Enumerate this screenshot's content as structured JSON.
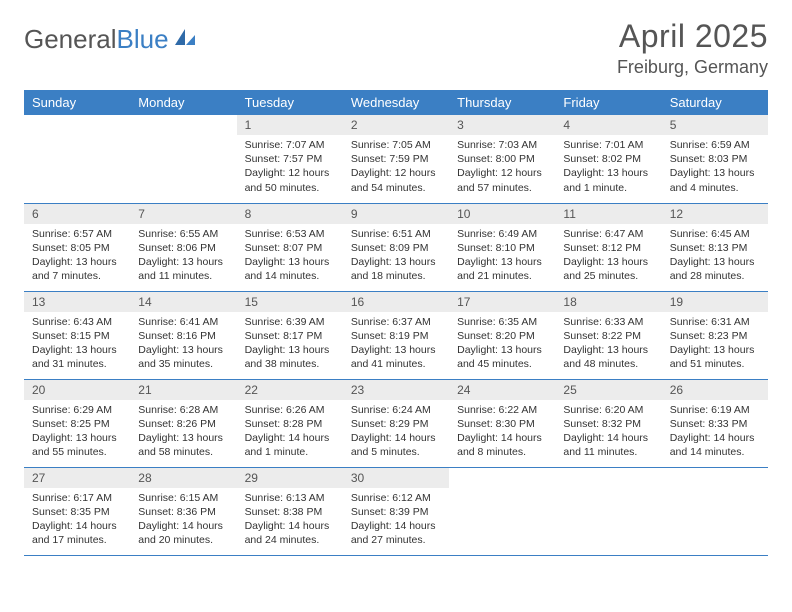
{
  "brand": {
    "part1": "General",
    "part2": "Blue"
  },
  "title": "April 2025",
  "location": "Freiburg, Germany",
  "colors": {
    "header_bg": "#3b7fc4",
    "header_text": "#ffffff",
    "daynum_bg": "#ececec",
    "text": "#333333",
    "rule": "#3b7fc4"
  },
  "weekdays": [
    "Sunday",
    "Monday",
    "Tuesday",
    "Wednesday",
    "Thursday",
    "Friday",
    "Saturday"
  ],
  "grid": {
    "first_weekday_index": 2,
    "days_in_month": 30
  },
  "days": {
    "1": {
      "sunrise": "7:07 AM",
      "sunset": "7:57 PM",
      "daylight": "12 hours and 50 minutes."
    },
    "2": {
      "sunrise": "7:05 AM",
      "sunset": "7:59 PM",
      "daylight": "12 hours and 54 minutes."
    },
    "3": {
      "sunrise": "7:03 AM",
      "sunset": "8:00 PM",
      "daylight": "12 hours and 57 minutes."
    },
    "4": {
      "sunrise": "7:01 AM",
      "sunset": "8:02 PM",
      "daylight": "13 hours and 1 minute."
    },
    "5": {
      "sunrise": "6:59 AM",
      "sunset": "8:03 PM",
      "daylight": "13 hours and 4 minutes."
    },
    "6": {
      "sunrise": "6:57 AM",
      "sunset": "8:05 PM",
      "daylight": "13 hours and 7 minutes."
    },
    "7": {
      "sunrise": "6:55 AM",
      "sunset": "8:06 PM",
      "daylight": "13 hours and 11 minutes."
    },
    "8": {
      "sunrise": "6:53 AM",
      "sunset": "8:07 PM",
      "daylight": "13 hours and 14 minutes."
    },
    "9": {
      "sunrise": "6:51 AM",
      "sunset": "8:09 PM",
      "daylight": "13 hours and 18 minutes."
    },
    "10": {
      "sunrise": "6:49 AM",
      "sunset": "8:10 PM",
      "daylight": "13 hours and 21 minutes."
    },
    "11": {
      "sunrise": "6:47 AM",
      "sunset": "8:12 PM",
      "daylight": "13 hours and 25 minutes."
    },
    "12": {
      "sunrise": "6:45 AM",
      "sunset": "8:13 PM",
      "daylight": "13 hours and 28 minutes."
    },
    "13": {
      "sunrise": "6:43 AM",
      "sunset": "8:15 PM",
      "daylight": "13 hours and 31 minutes."
    },
    "14": {
      "sunrise": "6:41 AM",
      "sunset": "8:16 PM",
      "daylight": "13 hours and 35 minutes."
    },
    "15": {
      "sunrise": "6:39 AM",
      "sunset": "8:17 PM",
      "daylight": "13 hours and 38 minutes."
    },
    "16": {
      "sunrise": "6:37 AM",
      "sunset": "8:19 PM",
      "daylight": "13 hours and 41 minutes."
    },
    "17": {
      "sunrise": "6:35 AM",
      "sunset": "8:20 PM",
      "daylight": "13 hours and 45 minutes."
    },
    "18": {
      "sunrise": "6:33 AM",
      "sunset": "8:22 PM",
      "daylight": "13 hours and 48 minutes."
    },
    "19": {
      "sunrise": "6:31 AM",
      "sunset": "8:23 PM",
      "daylight": "13 hours and 51 minutes."
    },
    "20": {
      "sunrise": "6:29 AM",
      "sunset": "8:25 PM",
      "daylight": "13 hours and 55 minutes."
    },
    "21": {
      "sunrise": "6:28 AM",
      "sunset": "8:26 PM",
      "daylight": "13 hours and 58 minutes."
    },
    "22": {
      "sunrise": "6:26 AM",
      "sunset": "8:28 PM",
      "daylight": "14 hours and 1 minute."
    },
    "23": {
      "sunrise": "6:24 AM",
      "sunset": "8:29 PM",
      "daylight": "14 hours and 5 minutes."
    },
    "24": {
      "sunrise": "6:22 AM",
      "sunset": "8:30 PM",
      "daylight": "14 hours and 8 minutes."
    },
    "25": {
      "sunrise": "6:20 AM",
      "sunset": "8:32 PM",
      "daylight": "14 hours and 11 minutes."
    },
    "26": {
      "sunrise": "6:19 AM",
      "sunset": "8:33 PM",
      "daylight": "14 hours and 14 minutes."
    },
    "27": {
      "sunrise": "6:17 AM",
      "sunset": "8:35 PM",
      "daylight": "14 hours and 17 minutes."
    },
    "28": {
      "sunrise": "6:15 AM",
      "sunset": "8:36 PM",
      "daylight": "14 hours and 20 minutes."
    },
    "29": {
      "sunrise": "6:13 AM",
      "sunset": "8:38 PM",
      "daylight": "14 hours and 24 minutes."
    },
    "30": {
      "sunrise": "6:12 AM",
      "sunset": "8:39 PM",
      "daylight": "14 hours and 27 minutes."
    }
  }
}
